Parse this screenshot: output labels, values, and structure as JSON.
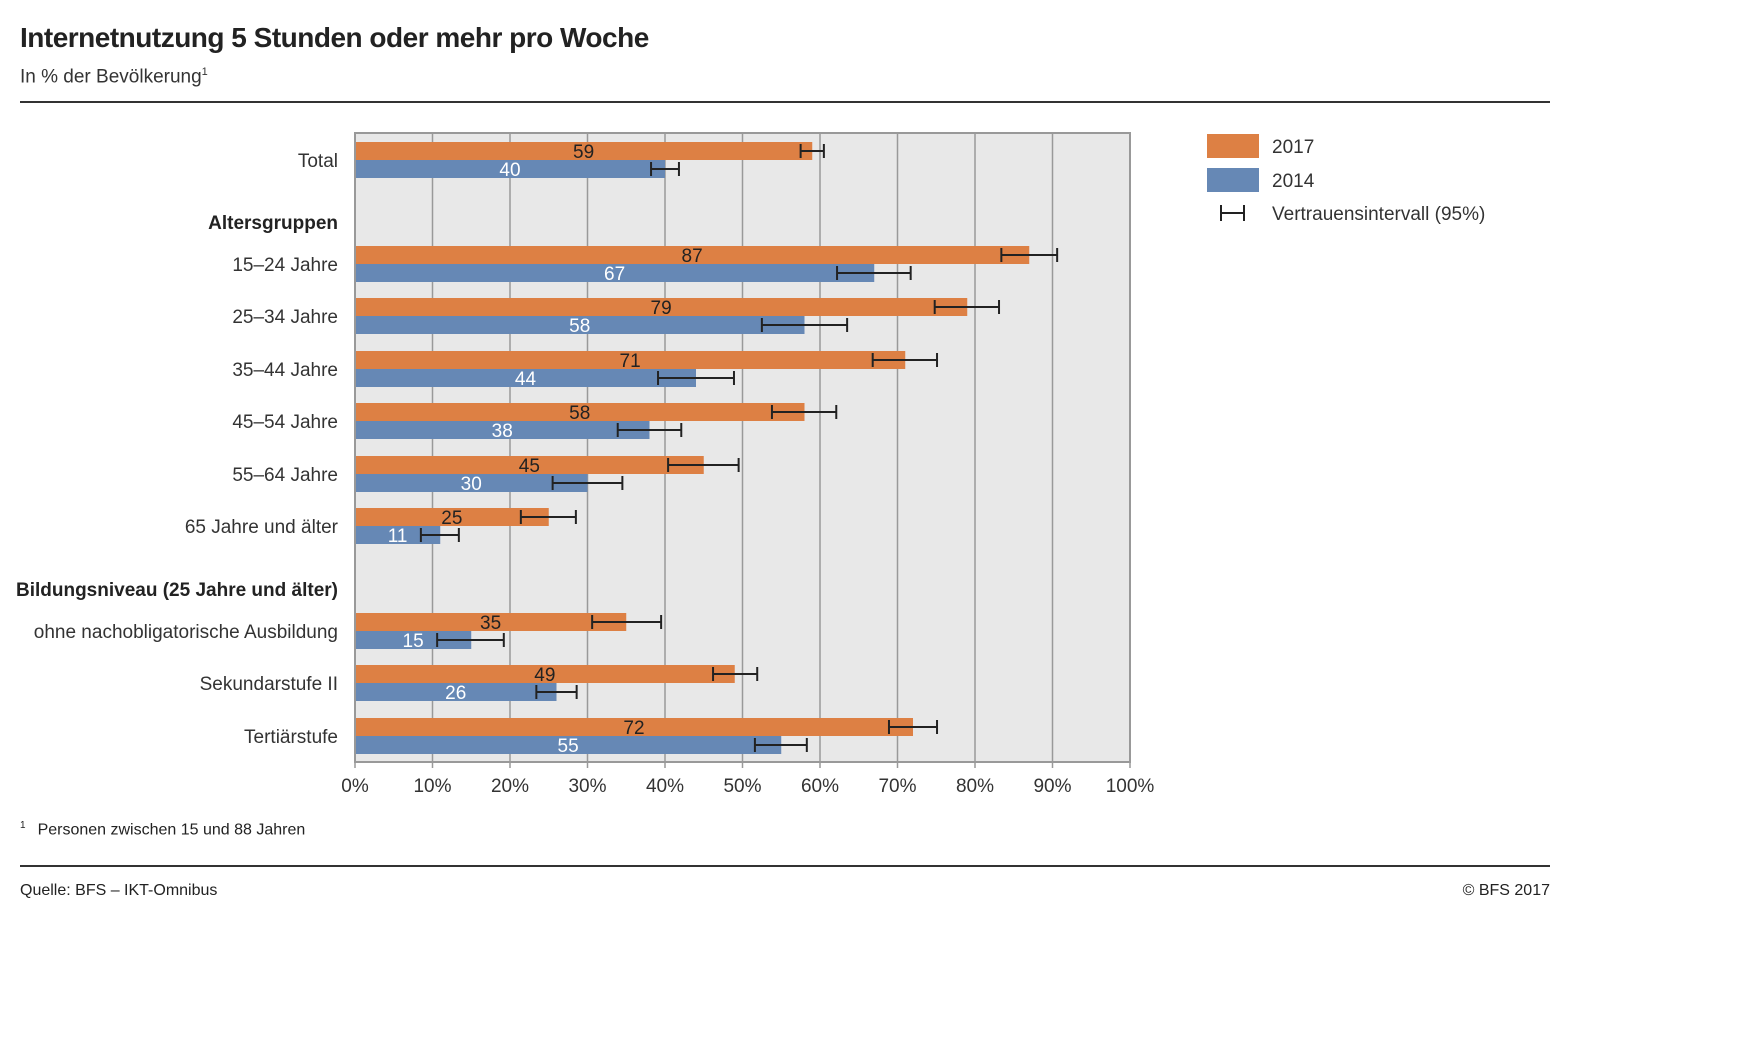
{
  "title": "Internetnutzung 5 Stunden oder mehr pro Woche",
  "subtitle": "In % der Bevölkerung",
  "subtitle_footnote_mark": "1",
  "footnote": {
    "mark": "1",
    "text": "Personen zwischen 15 und 88 Jahren"
  },
  "source": "Quelle: BFS – IKT-Omnibus",
  "copyright": "© BFS 2017",
  "colors": {
    "2017": "#dd8044",
    "2014": "#6688b5",
    "plot_bg": "#e8e8e8"
  },
  "chart_data": {
    "type": "bar",
    "orientation": "horizontal",
    "xlim": [
      0,
      100
    ],
    "xticks": [
      "0%",
      "10%",
      "20%",
      "30%",
      "40%",
      "50%",
      "60%",
      "70%",
      "80%",
      "90%",
      "100%"
    ],
    "grid": true,
    "legend_position": "right",
    "legend": [
      "2017",
      "2014",
      "Vertrauensintervall (95%)"
    ],
    "rows": [
      {
        "kind": "cat",
        "label": "Total",
        "v2017": 59,
        "ci2017": [
          57.5,
          60.5
        ],
        "v2014": 40,
        "ci2014": [
          38.2,
          41.8
        ]
      },
      {
        "kind": "header",
        "label": "Altersgruppen"
      },
      {
        "kind": "cat",
        "label": "15–24 Jahre",
        "v2017": 87,
        "ci2017": [
          83.4,
          90.6
        ],
        "v2014": 67,
        "ci2014": [
          62.2,
          71.7
        ]
      },
      {
        "kind": "cat",
        "label": "25–34 Jahre",
        "v2017": 79,
        "ci2017": [
          74.8,
          83.1
        ],
        "v2014": 58,
        "ci2014": [
          52.5,
          63.5
        ]
      },
      {
        "kind": "cat",
        "label": "35–44 Jahre",
        "v2017": 71,
        "ci2017": [
          66.8,
          75.1
        ],
        "v2014": 44,
        "ci2014": [
          39.1,
          48.9
        ]
      },
      {
        "kind": "cat",
        "label": "45–54 Jahre",
        "v2017": 58,
        "ci2017": [
          53.8,
          62.1
        ],
        "v2014": 38,
        "ci2014": [
          33.9,
          42.1
        ]
      },
      {
        "kind": "cat",
        "label": "55–64 Jahre",
        "v2017": 45,
        "ci2017": [
          40.4,
          49.5
        ],
        "v2014": 30,
        "ci2014": [
          25.5,
          34.5
        ]
      },
      {
        "kind": "cat",
        "label": "65 Jahre und älter",
        "v2017": 25,
        "ci2017": [
          21.4,
          28.5
        ],
        "v2014": 11,
        "ci2014": [
          8.5,
          13.4
        ]
      },
      {
        "kind": "header",
        "label": "Bildungsniveau (25 Jahre und älter)"
      },
      {
        "kind": "cat",
        "label": "ohne nachobligatorische Ausbildung",
        "v2017": 35,
        "ci2017": [
          30.6,
          39.5
        ],
        "v2014": 15,
        "ci2014": [
          10.6,
          19.2
        ]
      },
      {
        "kind": "cat",
        "label": "Sekundarstufe II",
        "v2017": 49,
        "ci2017": [
          46.2,
          51.9
        ],
        "v2014": 26,
        "ci2014": [
          23.4,
          28.6
        ]
      },
      {
        "kind": "cat",
        "label": "Tertiärstufe",
        "v2017": 72,
        "ci2017": [
          68.9,
          75.1
        ],
        "v2014": 55,
        "ci2014": [
          51.6,
          58.3
        ]
      }
    ]
  }
}
